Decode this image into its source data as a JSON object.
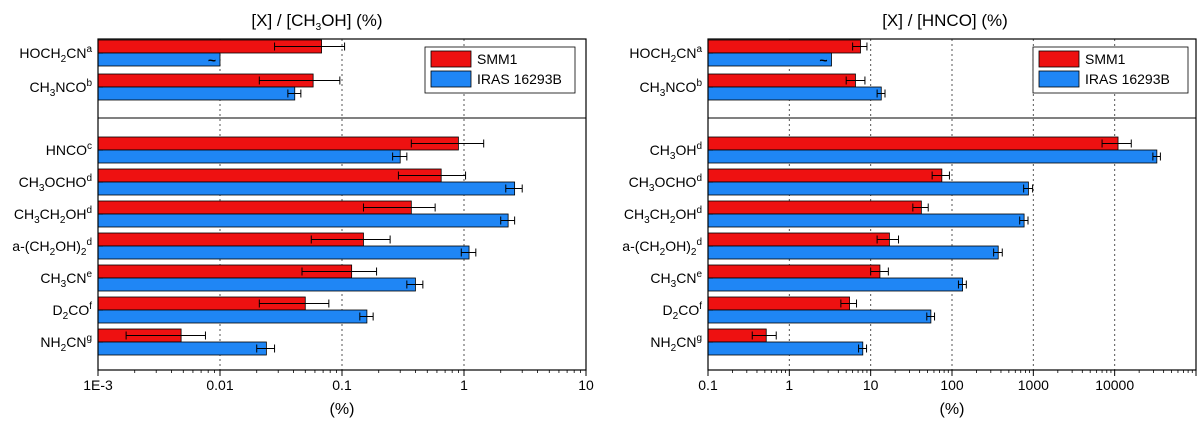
{
  "colors": {
    "smm1": "#ee1111",
    "iras": "#1f86f5",
    "err": "#000000",
    "grid": "#555555"
  },
  "chart_data": [
    {
      "type": "bar",
      "orientation": "horizontal",
      "scale": "log",
      "title_parts": [
        {
          "t": "[X] / [CH"
        },
        {
          "t": "3",
          "s": "sub"
        },
        {
          "t": "OH] (%)"
        }
      ],
      "xlabel": "(%)",
      "xlim": [
        0.001,
        10
      ],
      "xticks": [
        0.001,
        0.01,
        0.1,
        1,
        10
      ],
      "xtick_labels": [
        "1E-3",
        "0.01",
        "0.1",
        "1",
        "10"
      ],
      "legend": {
        "position": "top-right",
        "entries": [
          "SMM1",
          "IRAS 16293B"
        ]
      },
      "series": [
        {
          "name": "SMM1",
          "values": [
            0.068,
            0.058,
            0.9,
            0.65,
            0.37,
            0.15,
            0.12,
            0.05,
            0.0048
          ],
          "err_low": [
            0.04,
            0.037,
            0.53,
            0.36,
            0.22,
            0.094,
            0.073,
            0.029,
            0.0031
          ],
          "err_high": [
            0.037,
            0.038,
            0.55,
            0.38,
            0.21,
            0.098,
            0.072,
            0.028,
            0.0028
          ]
        },
        {
          "name": "IRAS 16293B",
          "values": [
            0.01,
            0.041,
            0.3,
            2.6,
            2.3,
            1.1,
            0.4,
            0.16,
            0.024
          ],
          "err_low": [
            0,
            0.005,
            0.04,
            0.4,
            0.3,
            0.15,
            0.06,
            0.02,
            0.004
          ],
          "err_high": [
            0,
            0.005,
            0.04,
            0.4,
            0.3,
            0.15,
            0.06,
            0.02,
            0.004
          ]
        }
      ],
      "approx_marks": [
        {
          "row": 0,
          "series": "IRAS 16293B",
          "text": "~"
        }
      ],
      "categories": [
        [
          {
            "t": "HOCH"
          },
          {
            "t": "2",
            "s": "sub"
          },
          {
            "t": "CN"
          },
          {
            "t": "a",
            "s": "sup"
          }
        ],
        [
          {
            "t": "CH"
          },
          {
            "t": "3",
            "s": "sub"
          },
          {
            "t": "NCO"
          },
          {
            "t": "b",
            "s": "sup"
          }
        ],
        [
          {
            "t": "HNCO"
          },
          {
            "t": "c",
            "s": "sup"
          }
        ],
        [
          {
            "t": "CH"
          },
          {
            "t": "3",
            "s": "sub"
          },
          {
            "t": "OCHO"
          },
          {
            "t": "d",
            "s": "sup"
          }
        ],
        [
          {
            "t": "CH"
          },
          {
            "t": "3",
            "s": "sub"
          },
          {
            "t": "CH"
          },
          {
            "t": "2",
            "s": "sub"
          },
          {
            "t": "OH"
          },
          {
            "t": "d",
            "s": "sup"
          }
        ],
        [
          {
            "t": "a-(CH"
          },
          {
            "t": "2",
            "s": "sub"
          },
          {
            "t": "OH)"
          },
          {
            "t": "2",
            "s": "sub"
          },
          {
            "t": "d",
            "s": "sup"
          }
        ],
        [
          {
            "t": "CH"
          },
          {
            "t": "3",
            "s": "sub"
          },
          {
            "t": "CN"
          },
          {
            "t": "e",
            "s": "sup"
          }
        ],
        [
          {
            "t": "D"
          },
          {
            "t": "2",
            "s": "sub"
          },
          {
            "t": "CO"
          },
          {
            "t": "f",
            "s": "sup"
          }
        ],
        [
          {
            "t": "NH"
          },
          {
            "t": "2",
            "s": "sub"
          },
          {
            "t": "CN"
          },
          {
            "t": "g",
            "s": "sup"
          }
        ]
      ]
    },
    {
      "type": "bar",
      "orientation": "horizontal",
      "scale": "log",
      "title_parts": [
        {
          "t": "[X] / [HNCO] (%)"
        }
      ],
      "xlabel": "(%)",
      "xlim": [
        0.1,
        100000
      ],
      "xticks": [
        0.1,
        1,
        10,
        100,
        1000,
        10000
      ],
      "xtick_labels": [
        "0.1",
        "1",
        "10",
        "100",
        "1000",
        "10000"
      ],
      "legend": {
        "position": "top-right",
        "entries": [
          "SMM1",
          "IRAS 16293B"
        ]
      },
      "series": [
        {
          "name": "SMM1",
          "values": [
            7.5,
            6.5,
            11000,
            75,
            42,
            17,
            13,
            5.5,
            0.52
          ],
          "err_low": [
            1.5,
            1.5,
            4000,
            18,
            9,
            5,
            3,
            1.2,
            0.17
          ],
          "err_high": [
            1.5,
            2,
            5000,
            18,
            9,
            5,
            3.5,
            1.2,
            0.17
          ]
        },
        {
          "name": "IRAS 16293B",
          "values": [
            3.3,
            13.5,
            33000,
            870,
            770,
            370,
            135,
            55,
            8.0
          ],
          "err_low": [
            0,
            1.5,
            3500,
            110,
            90,
            45,
            15,
            6,
            0.9
          ],
          "err_high": [
            0,
            1.5,
            3500,
            110,
            90,
            45,
            15,
            6,
            0.9
          ]
        }
      ],
      "approx_marks": [
        {
          "row": 0,
          "series": "IRAS 16293B",
          "text": "~"
        }
      ],
      "categories": [
        [
          {
            "t": "HOCH"
          },
          {
            "t": "2",
            "s": "sub"
          },
          {
            "t": "CN"
          },
          {
            "t": "a",
            "s": "sup"
          }
        ],
        [
          {
            "t": "CH"
          },
          {
            "t": "3",
            "s": "sub"
          },
          {
            "t": "NCO"
          },
          {
            "t": "b",
            "s": "sup"
          }
        ],
        [
          {
            "t": "CH"
          },
          {
            "t": "3",
            "s": "sub"
          },
          {
            "t": "OH"
          },
          {
            "t": "d",
            "s": "sup"
          }
        ],
        [
          {
            "t": "CH"
          },
          {
            "t": "3",
            "s": "sub"
          },
          {
            "t": "OCHO"
          },
          {
            "t": "d",
            "s": "sup"
          }
        ],
        [
          {
            "t": "CH"
          },
          {
            "t": "3",
            "s": "sub"
          },
          {
            "t": "CH"
          },
          {
            "t": "2",
            "s": "sub"
          },
          {
            "t": "OH"
          },
          {
            "t": "d",
            "s": "sup"
          }
        ],
        [
          {
            "t": "a-(CH"
          },
          {
            "t": "2",
            "s": "sub"
          },
          {
            "t": "OH)"
          },
          {
            "t": "2",
            "s": "sub"
          },
          {
            "t": "d",
            "s": "sup"
          }
        ],
        [
          {
            "t": "CH"
          },
          {
            "t": "3",
            "s": "sub"
          },
          {
            "t": "CN"
          },
          {
            "t": "e",
            "s": "sup"
          }
        ],
        [
          {
            "t": "D"
          },
          {
            "t": "2",
            "s": "sub"
          },
          {
            "t": "CO"
          },
          {
            "t": "f",
            "s": "sup"
          }
        ],
        [
          {
            "t": "NH"
          },
          {
            "t": "2",
            "s": "sub"
          },
          {
            "t": "CN"
          },
          {
            "t": "g",
            "s": "sup"
          }
        ]
      ]
    }
  ]
}
